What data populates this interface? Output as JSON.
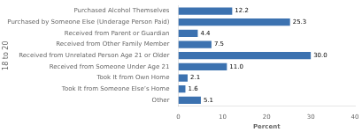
{
  "chart_data": {
    "type": "bar",
    "orientation": "horizontal",
    "xlabel": "Percent",
    "ylabel": "18 to 20",
    "categories": [
      "Other",
      "Took It from Someone Else’s Home",
      "Took It from Own Home",
      "Received from Someone Under Age 21",
      "Received from Unrelated Person Age 21 or Older",
      "Received from Other Family Member",
      "Received from Parent or Guardian",
      "Purchased by Someone Else (Underage Person Paid)",
      "Purchased Alcohol Themselves"
    ],
    "values": [
      5.1,
      1.6,
      2.1,
      11.0,
      30.0,
      7.5,
      4.4,
      25.3,
      12.2
    ],
    "value_labels": [
      "5.1",
      "1.6",
      "2.1",
      "11.0",
      "30.0",
      "7.5",
      "4.4",
      "25.3",
      "12.2"
    ],
    "color": "#3c72b0",
    "xlim": [
      0,
      40
    ],
    "xticks": [
      0,
      10,
      20,
      30,
      40
    ],
    "grid": false,
    "data_labels": true
  }
}
